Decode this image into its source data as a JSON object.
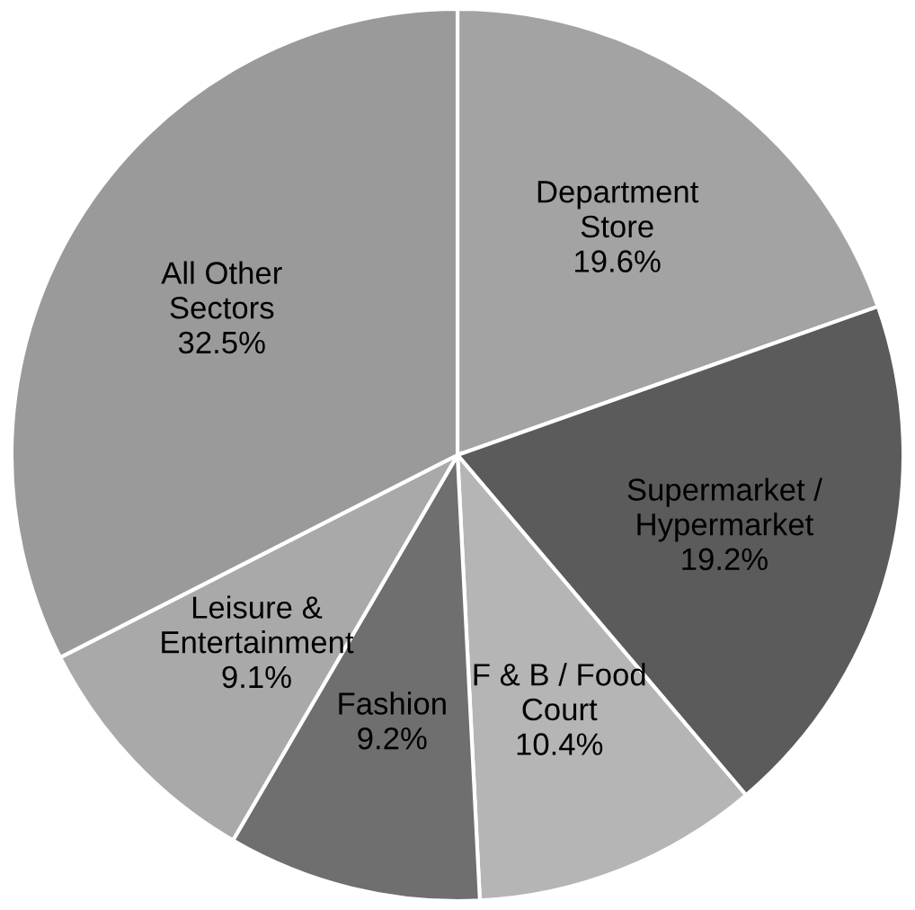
{
  "chart_data": {
    "type": "pie",
    "categories": [
      "Department\nStore",
      "Supermarket /\nHypermarket",
      "F & B / Food\nCourt",
      "Fashion",
      "Leisure &\nEntertainment",
      "All Other\nSectors"
    ],
    "values": [
      19.6,
      19.2,
      10.4,
      9.2,
      9.1,
      32.5
    ],
    "value_labels": [
      "19.6%",
      "19.2%",
      "10.4%",
      "9.2%",
      "9.1%",
      "32.5%"
    ],
    "colors": [
      "#a3a3a3",
      "#5b5b5b",
      "#b5b5b5",
      "#6f6f6f",
      "#a9a9a9",
      "#9a9a9a"
    ]
  }
}
